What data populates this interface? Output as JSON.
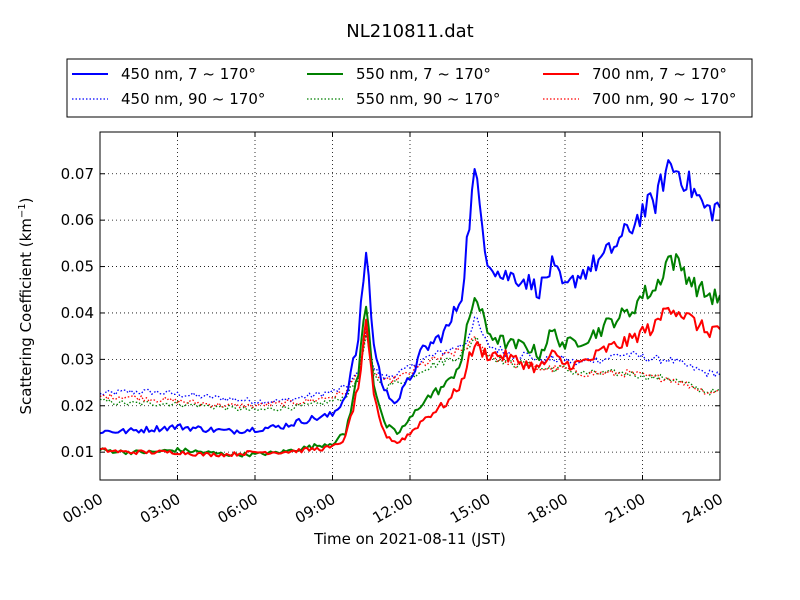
{
  "chart_data": {
    "type": "line",
    "title": "NL210811.dat",
    "xlabel": "Time on 2021-08-11 (JST)",
    "ylabel": "Scattering Coefficient (km",
    "ylabel_sup": "−1",
    "ylabel_close": ")",
    "xlim": [
      "00:00",
      "24:00"
    ],
    "ylim": [
      0.004,
      0.079
    ],
    "grid": true,
    "legend_position": "top, above plot, 3 columns",
    "x_ticks": [
      "00:00",
      "03:00",
      "06:00",
      "09:00",
      "12:00",
      "15:00",
      "18:00",
      "21:00",
      "24:00"
    ],
    "y_ticks": [
      "0.01",
      "0.02",
      "0.03",
      "0.04",
      "0.05",
      "0.06",
      "0.07"
    ],
    "x_hours": [
      0,
      1,
      2,
      3,
      4,
      5,
      6,
      7,
      8,
      9,
      9.5,
      10,
      10.3,
      10.6,
      11,
      11.5,
      12,
      12.5,
      13,
      13.5,
      14,
      14.2,
      14.5,
      15,
      15.5,
      16,
      16.5,
      17,
      17.5,
      18,
      18.5,
      19,
      19.5,
      20,
      20.5,
      21,
      21.5,
      22,
      22.5,
      23,
      23.5,
      24
    ],
    "series": [
      {
        "name": "450 nm, 7 ~ 170°",
        "color": "#0000ff",
        "style": "solid",
        "values": [
          0.0145,
          0.0145,
          0.015,
          0.0155,
          0.015,
          0.0145,
          0.015,
          0.0155,
          0.017,
          0.018,
          0.022,
          0.034,
          0.054,
          0.033,
          0.023,
          0.021,
          0.026,
          0.032,
          0.034,
          0.037,
          0.044,
          0.055,
          0.07,
          0.052,
          0.048,
          0.048,
          0.047,
          0.045,
          0.05,
          0.045,
          0.048,
          0.05,
          0.052,
          0.055,
          0.058,
          0.062,
          0.064,
          0.072,
          0.07,
          0.066,
          0.062,
          0.063
        ]
      },
      {
        "name": "450 nm, 90 ~ 170°",
        "color": "#0000ff",
        "style": "dotted",
        "values": [
          0.0225,
          0.023,
          0.023,
          0.0225,
          0.022,
          0.0215,
          0.021,
          0.021,
          0.022,
          0.023,
          0.024,
          0.027,
          0.036,
          0.028,
          0.026,
          0.027,
          0.028,
          0.03,
          0.031,
          0.032,
          0.033,
          0.034,
          0.039,
          0.033,
          0.032,
          0.031,
          0.031,
          0.03,
          0.03,
          0.03,
          0.029,
          0.03,
          0.03,
          0.031,
          0.031,
          0.0305,
          0.03,
          0.03,
          0.029,
          0.028,
          0.027,
          0.027
        ]
      },
      {
        "name": "550 nm, 7 ~ 170°",
        "color": "#008000",
        "style": "solid",
        "values": [
          0.0105,
          0.01,
          0.01,
          0.0105,
          0.01,
          0.0095,
          0.0095,
          0.01,
          0.011,
          0.012,
          0.014,
          0.027,
          0.043,
          0.025,
          0.016,
          0.014,
          0.017,
          0.021,
          0.023,
          0.025,
          0.03,
          0.036,
          0.044,
          0.036,
          0.034,
          0.033,
          0.033,
          0.031,
          0.036,
          0.033,
          0.034,
          0.035,
          0.037,
          0.039,
          0.04,
          0.044,
          0.045,
          0.052,
          0.05,
          0.046,
          0.044,
          0.043
        ]
      },
      {
        "name": "550 nm, 90 ~ 170°",
        "color": "#008000",
        "style": "dotted",
        "values": [
          0.021,
          0.0205,
          0.0205,
          0.0205,
          0.02,
          0.0195,
          0.019,
          0.0195,
          0.02,
          0.021,
          0.022,
          0.026,
          0.035,
          0.027,
          0.024,
          0.025,
          0.026,
          0.028,
          0.029,
          0.03,
          0.031,
          0.032,
          0.035,
          0.031,
          0.03,
          0.029,
          0.029,
          0.028,
          0.028,
          0.028,
          0.027,
          0.027,
          0.027,
          0.027,
          0.027,
          0.0265,
          0.026,
          0.026,
          0.025,
          0.024,
          0.023,
          0.023
        ]
      },
      {
        "name": "700 nm, 7 ~ 170°",
        "color": "#ff0000",
        "style": "solid",
        "values": [
          0.0105,
          0.01,
          0.01,
          0.01,
          0.0095,
          0.0095,
          0.01,
          0.01,
          0.0105,
          0.011,
          0.013,
          0.024,
          0.037,
          0.022,
          0.014,
          0.012,
          0.014,
          0.017,
          0.019,
          0.021,
          0.025,
          0.029,
          0.033,
          0.031,
          0.031,
          0.03,
          0.029,
          0.028,
          0.031,
          0.029,
          0.029,
          0.03,
          0.032,
          0.033,
          0.034,
          0.036,
          0.037,
          0.042,
          0.04,
          0.038,
          0.036,
          0.037
        ]
      },
      {
        "name": "700 nm, 90 ~ 170°",
        "color": "#ff0000",
        "style": "dotted",
        "values": [
          0.022,
          0.022,
          0.0215,
          0.021,
          0.0205,
          0.02,
          0.02,
          0.0205,
          0.021,
          0.022,
          0.023,
          0.027,
          0.035,
          0.027,
          0.025,
          0.026,
          0.027,
          0.029,
          0.03,
          0.031,
          0.032,
          0.033,
          0.034,
          0.031,
          0.03,
          0.029,
          0.029,
          0.028,
          0.028,
          0.028,
          0.027,
          0.027,
          0.027,
          0.027,
          0.027,
          0.0265,
          0.026,
          0.026,
          0.025,
          0.024,
          0.023,
          0.023
        ]
      }
    ]
  }
}
